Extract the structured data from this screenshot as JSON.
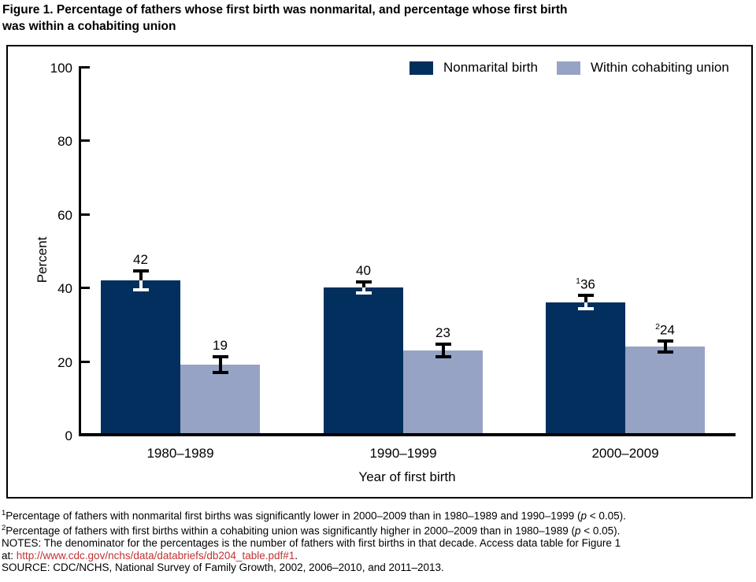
{
  "figure_title": "Figure 1. Percentage of fathers whose first birth was nonmarital, and percentage whose first birth\nwas within a cohabiting union",
  "chart_data": {
    "type": "bar",
    "title": "Figure 1. Percentage of fathers whose first birth was nonmarital, and percentage whose first birth was within a cohabiting union",
    "categories": [
      "1980–1989",
      "1990–1999",
      "2000–2009"
    ],
    "series": [
      {
        "name": "Nonmarital birth",
        "color": "#022f5d",
        "values": [
          42,
          40,
          36
        ],
        "errors": [
          2.5,
          1.5,
          1.8
        ],
        "value_label_sups": [
          "",
          "",
          "1"
        ]
      },
      {
        "name": "Within cohabiting union",
        "color": "#96a3c4",
        "values": [
          19,
          23,
          24
        ],
        "errors": [
          2.1,
          1.7,
          1.5
        ],
        "value_label_sups": [
          "",
          "",
          "2"
        ]
      }
    ],
    "xlabel": "Year of first birth",
    "ylabel": "Percent",
    "ylim": [
      0,
      100
    ],
    "yticks": [
      0,
      20,
      40,
      60,
      80,
      100
    ],
    "grid": false,
    "error_bars": true,
    "legend_position": "top-right"
  },
  "footnotes": {
    "link_color": "#bf3434",
    "lines": [
      {
        "segments": [
          {
            "type": "sup",
            "text": "1"
          },
          {
            "type": "plain",
            "text": "Percentage of fathers with nonmarital first births was significantly lower in 2000–2009 than in 1980–1989 and 1990–1999 ("
          },
          {
            "type": "italic",
            "text": "p"
          },
          {
            "type": "plain",
            "text": " < 0.05)."
          }
        ]
      },
      {
        "segments": [
          {
            "type": "sup",
            "text": "2"
          },
          {
            "type": "plain",
            "text": "Percentage of fathers with first births within a cohabiting union was significantly higher in 2000–2009 than in 1980–1989 ("
          },
          {
            "type": "italic",
            "text": "p"
          },
          {
            "type": "plain",
            "text": " < 0.05)."
          }
        ]
      },
      {
        "segments": [
          {
            "type": "plain",
            "text": "NOTES: The denominator for the percentages is the number of fathers with first births in that decade. Access data table for Figure 1"
          }
        ]
      },
      {
        "segments": [
          {
            "type": "plain",
            "text": "at: "
          },
          {
            "type": "link",
            "text": "http://www.cdc.gov/nchs/data/databriefs/db204_table.pdf#1"
          },
          {
            "type": "plain",
            "text": "."
          }
        ]
      },
      {
        "segments": [
          {
            "type": "plain",
            "text": "SOURCE: CDC/NCHS, National Survey of Family Growth, 2002, 2006–2010, and 2011–2013."
          }
        ]
      }
    ]
  },
  "colors": {
    "axis": "#000000",
    "background": "#ffffff",
    "error_bar_on_dark": "#ffffff",
    "error_bar": "#000000"
  }
}
